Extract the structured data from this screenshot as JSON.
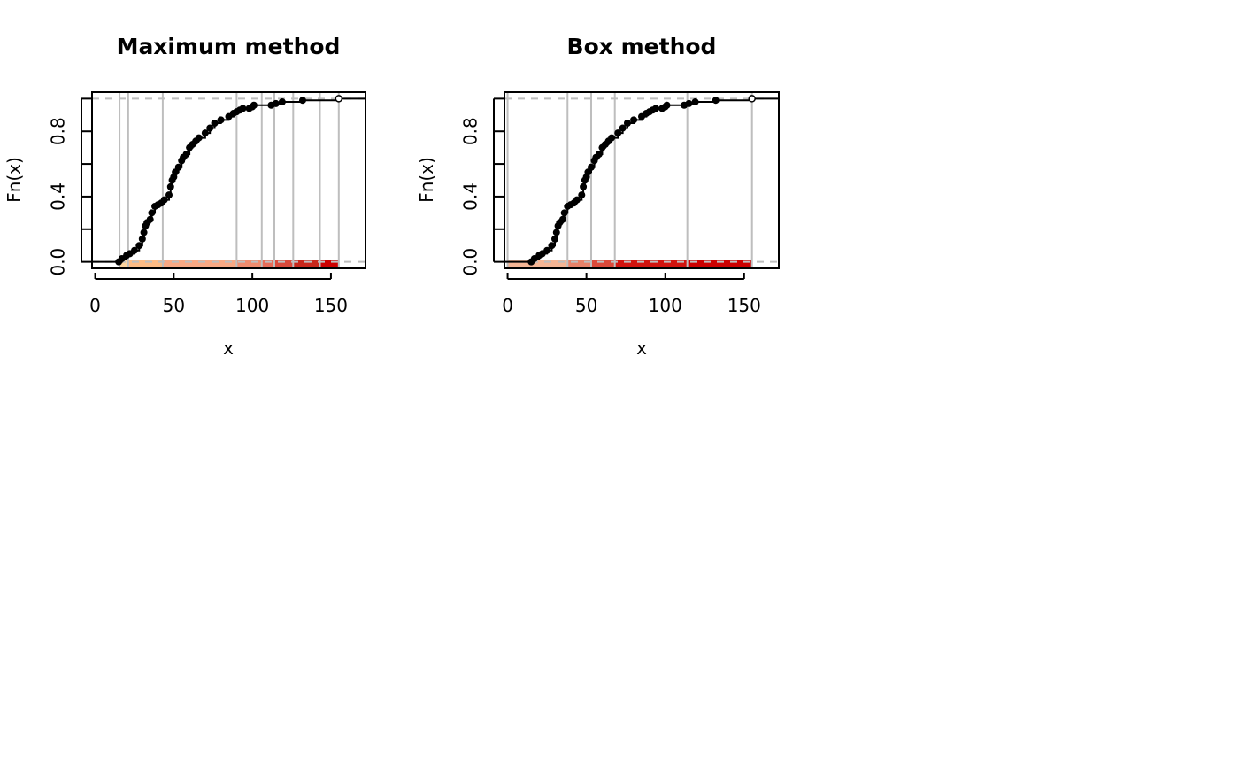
{
  "figure": {
    "panels_count": 2
  },
  "chart_data": [
    {
      "type": "line",
      "subtype": "ecdf",
      "title": "Maximum method",
      "xlabel": "x",
      "ylabel": "Fn(x)",
      "xlim": [
        -2,
        172
      ],
      "ylim": [
        -0.04,
        1.04
      ],
      "xticks": [
        0,
        50,
        100,
        150
      ],
      "xtick_labels": [
        "0",
        "50",
        "100",
        "150"
      ],
      "yticks": [
        0.0,
        0.2,
        0.4,
        0.6,
        0.8,
        1.0
      ],
      "ytick_labels": [
        "0.0",
        "",
        "0.4",
        "",
        "0.8",
        ""
      ],
      "reference_lines": [
        0,
        1
      ],
      "reference_line_color": "#bebebe",
      "grid": false,
      "breaks": [
        15.5,
        21,
        43,
        90,
        106,
        114,
        126,
        143,
        155
      ],
      "class_colors": [
        "#fdd49e",
        "#fdbb84",
        "#f9a984",
        "#ef8c6e",
        "#e76c58",
        "#d94a3b",
        "#c8281c",
        "#cc0000"
      ],
      "ecdf": {
        "x": [
          15,
          17,
          20,
          22,
          25,
          28,
          30,
          31,
          32,
          33,
          35,
          36,
          38,
          40,
          42,
          44,
          47,
          48,
          49,
          50,
          51,
          53,
          55,
          56,
          58,
          60,
          62,
          64,
          66,
          70,
          73,
          76,
          80,
          85,
          88,
          90,
          92,
          94,
          98,
          100,
          101,
          112,
          115,
          119,
          132,
          155
        ],
        "y": [
          0.0,
          0.02,
          0.04,
          0.05,
          0.07,
          0.1,
          0.14,
          0.18,
          0.22,
          0.24,
          0.26,
          0.3,
          0.34,
          0.35,
          0.36,
          0.38,
          0.41,
          0.46,
          0.5,
          0.52,
          0.55,
          0.58,
          0.62,
          0.64,
          0.66,
          0.7,
          0.72,
          0.74,
          0.76,
          0.79,
          0.82,
          0.85,
          0.87,
          0.89,
          0.91,
          0.92,
          0.93,
          0.94,
          0.94,
          0.95,
          0.96,
          0.96,
          0.97,
          0.98,
          0.99,
          1.0
        ]
      },
      "point_color": "#000000"
    },
    {
      "type": "line",
      "subtype": "ecdf",
      "title": "Box method",
      "xlabel": "x",
      "ylabel": "Fn(x)",
      "xlim": [
        -2,
        172
      ],
      "ylim": [
        -0.04,
        1.04
      ],
      "xticks": [
        0,
        50,
        100,
        150
      ],
      "xtick_labels": [
        "0",
        "50",
        "100",
        "150"
      ],
      "yticks": [
        0.0,
        0.2,
        0.4,
        0.6,
        0.8,
        1.0
      ],
      "ytick_labels": [
        "0.0",
        "",
        "0.4",
        "",
        "0.8",
        ""
      ],
      "reference_lines": [
        0,
        1
      ],
      "reference_line_color": "#bebebe",
      "grid": false,
      "breaks": [
        0,
        38,
        53,
        68,
        114,
        155
      ],
      "class_colors": [
        "#f5b594",
        "#e88269",
        "#db4a3a",
        "#d1140f",
        "#cc0000"
      ],
      "ecdf": {
        "x": [
          15,
          17,
          20,
          22,
          25,
          28,
          30,
          31,
          32,
          33,
          35,
          36,
          38,
          40,
          42,
          44,
          47,
          48,
          49,
          50,
          51,
          53,
          55,
          56,
          58,
          60,
          62,
          64,
          66,
          70,
          73,
          76,
          80,
          85,
          88,
          90,
          92,
          94,
          98,
          100,
          101,
          112,
          115,
          119,
          132,
          155
        ],
        "y": [
          0.0,
          0.02,
          0.04,
          0.05,
          0.07,
          0.1,
          0.14,
          0.18,
          0.22,
          0.24,
          0.26,
          0.3,
          0.34,
          0.35,
          0.36,
          0.38,
          0.41,
          0.46,
          0.5,
          0.52,
          0.55,
          0.58,
          0.62,
          0.64,
          0.66,
          0.7,
          0.72,
          0.74,
          0.76,
          0.79,
          0.82,
          0.85,
          0.87,
          0.89,
          0.91,
          0.92,
          0.93,
          0.94,
          0.94,
          0.95,
          0.96,
          0.96,
          0.97,
          0.98,
          0.99,
          1.0
        ]
      },
      "point_color": "#000000"
    }
  ]
}
